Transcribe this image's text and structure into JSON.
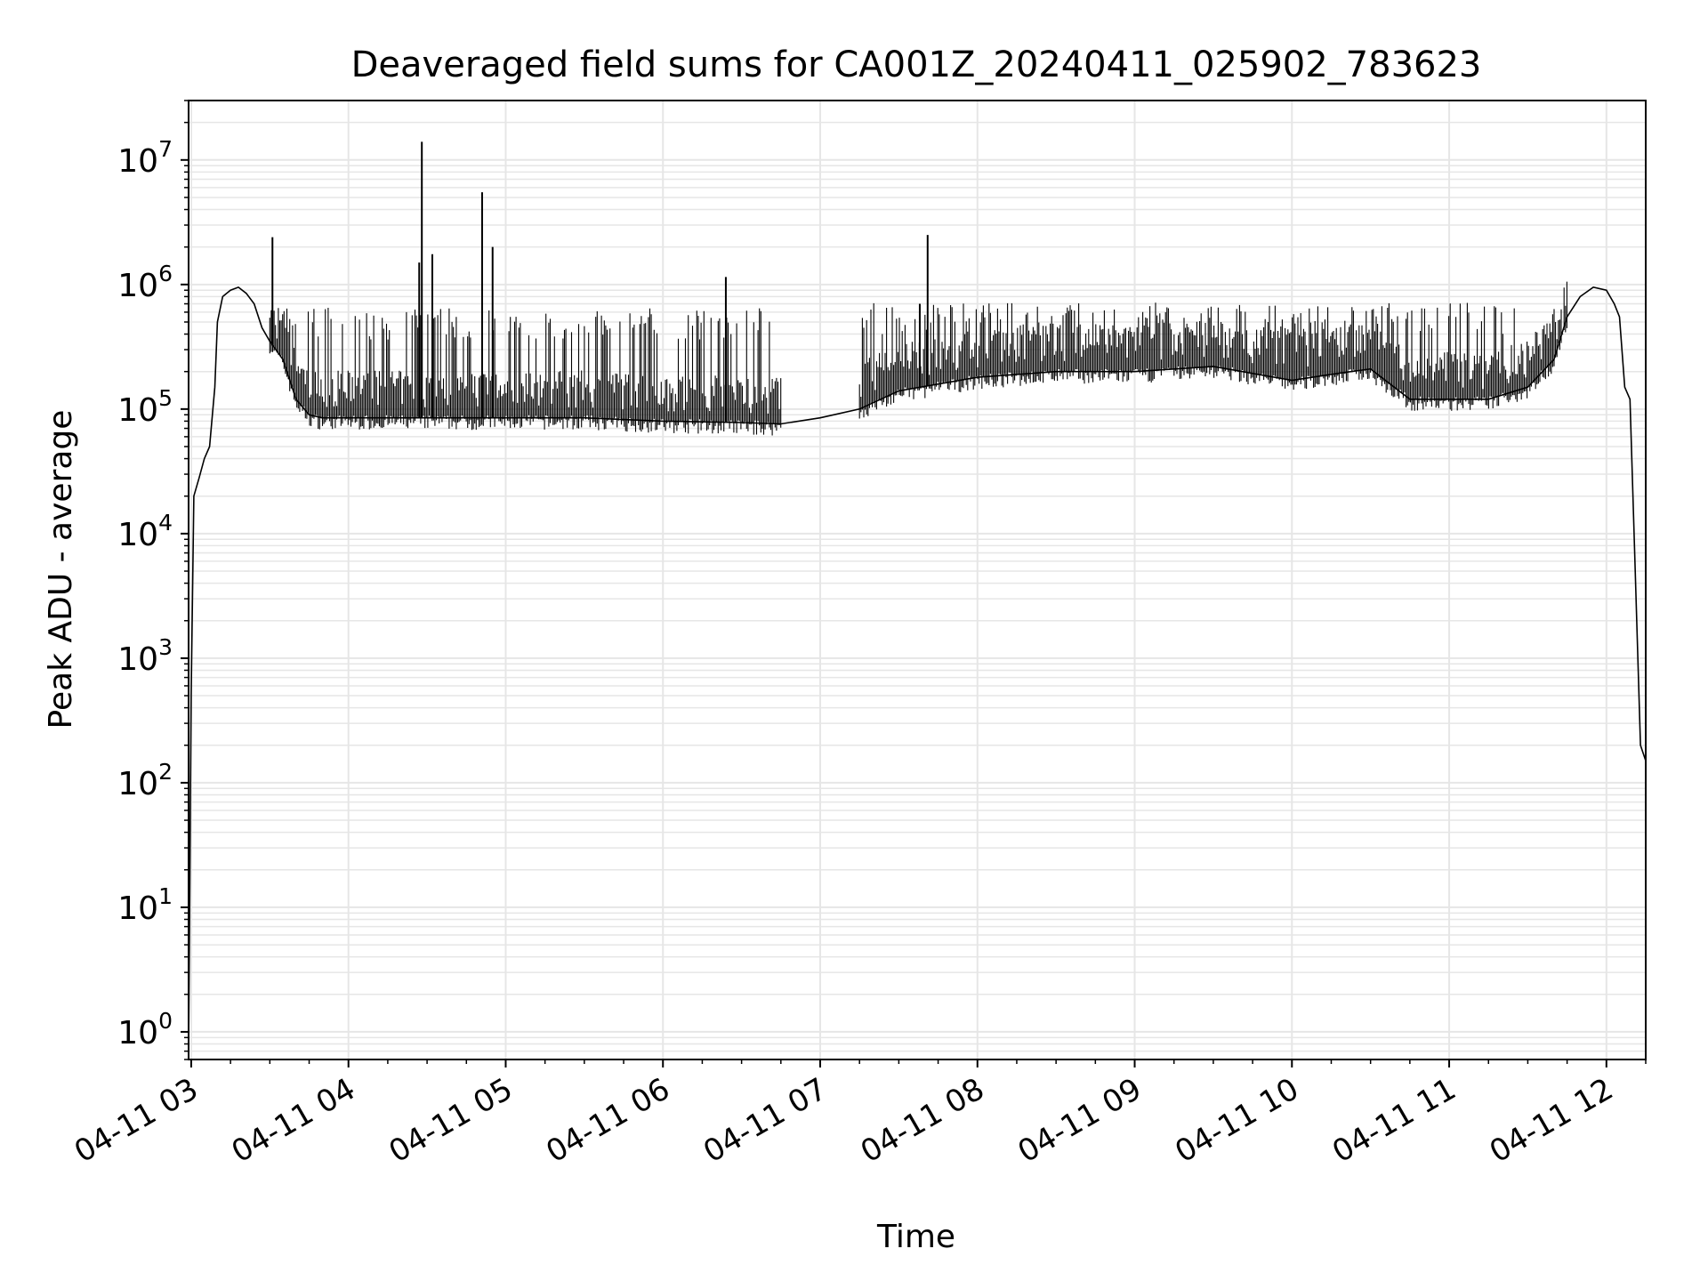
{
  "chart_data": {
    "type": "line",
    "title": "Deaveraged field sums for CA001Z_20240411_025902_783623",
    "xlabel": "Time",
    "ylabel": "Peak ADU - average",
    "yscale": "log",
    "ylim": [
      0.6,
      30000000
    ],
    "xlim": [
      "2024-04-11 02:59",
      "2024-04-11 12:15"
    ],
    "grid": true,
    "legend": "none",
    "x_ticks": [
      "04-11 03",
      "04-11 04",
      "04-11 05",
      "04-11 06",
      "04-11 07",
      "04-11 08",
      "04-11 09",
      "04-11 10",
      "04-11 11",
      "04-11 12"
    ],
    "y_ticks": [
      {
        "base": "10",
        "exp": "0",
        "value": 1
      },
      {
        "base": "10",
        "exp": "1",
        "value": 10
      },
      {
        "base": "10",
        "exp": "2",
        "value": 100
      },
      {
        "base": "10",
        "exp": "3",
        "value": 1000
      },
      {
        "base": "10",
        "exp": "4",
        "value": 10000
      },
      {
        "base": "10",
        "exp": "5",
        "value": 100000
      },
      {
        "base": "10",
        "exp": "6",
        "value": 1000000
      },
      {
        "base": "10",
        "exp": "7",
        "value": 10000000
      }
    ],
    "line_color": "#000000",
    "grid_color": "#e6e6e6",
    "series": [
      {
        "x": [
          "2024-04-11 02:59",
          "2024-04-11 03:00",
          "2024-04-11 03:01",
          "2024-04-11 03:03",
          "2024-04-11 03:05",
          "2024-04-11 03:07",
          "2024-04-11 03:09",
          "2024-04-11 03:10",
          "2024-04-11 03:12",
          "2024-04-11 03:15",
          "2024-04-11 03:18",
          "2024-04-11 03:21",
          "2024-04-11 03:24",
          "2024-04-11 03:27",
          "2024-04-11 03:30",
          "2024-04-11 03:35",
          "2024-04-11 03:40",
          "2024-04-11 03:45",
          "2024-04-11 03:50",
          "2024-04-11 04:00",
          "2024-04-11 04:30",
          "2024-04-11 05:00",
          "2024-04-11 05:30",
          "2024-04-11 06:00",
          "2024-04-11 06:30",
          "2024-04-11 06:45",
          "2024-04-11 07:00",
          "2024-04-11 07:15",
          "2024-04-11 07:30",
          "2024-04-11 08:00",
          "2024-04-11 08:30",
          "2024-04-11 09:00",
          "2024-04-11 09:30",
          "2024-04-11 10:00",
          "2024-04-11 10:15",
          "2024-04-11 10:30",
          "2024-04-11 10:45",
          "2024-04-11 11:00",
          "2024-04-11 11:15",
          "2024-04-11 11:30",
          "2024-04-11 11:40",
          "2024-04-11 11:45",
          "2024-04-11 11:50",
          "2024-04-11 11:55",
          "2024-04-11 12:00",
          "2024-04-11 12:03",
          "2024-04-11 12:05",
          "2024-04-11 12:07",
          "2024-04-11 12:09",
          "2024-04-11 12:11",
          "2024-04-11 12:13",
          "2024-04-11 12:15"
        ],
        "y": [
          0.7,
          500,
          20000,
          28000,
          40000,
          50000,
          150000,
          500000,
          800000,
          900000,
          950000,
          850000,
          700000,
          450000,
          350000,
          250000,
          120000,
          90000,
          85000,
          85000,
          85000,
          85000,
          85000,
          80000,
          78000,
          76000,
          85000,
          100000,
          140000,
          180000,
          200000,
          200000,
          220000,
          170000,
          190000,
          210000,
          120000,
          120000,
          120000,
          150000,
          250000,
          550000,
          800000,
          950000,
          900000,
          700000,
          550000,
          150000,
          120000,
          5000,
          200,
          150
        ]
      }
    ],
    "spike_bands": [
      {
        "x": [
          "2024-04-11 03:30",
          "2024-04-11 06:45"
        ],
        "top": 600000
      },
      {
        "x": [
          "2024-04-11 07:15",
          "2024-04-11 11:45"
        ],
        "top": 650000
      }
    ],
    "spikes": [
      {
        "x": "2024-04-11 03:31",
        "y": 2400000
      },
      {
        "x": "2024-04-11 04:27",
        "y": 1500000
      },
      {
        "x": "2024-04-11 04:28",
        "y": 14000000
      },
      {
        "x": "2024-04-11 04:32",
        "y": 1750000
      },
      {
        "x": "2024-04-11 04:51",
        "y": 5500000
      },
      {
        "x": "2024-04-11 04:55",
        "y": 2000000
      },
      {
        "x": "2024-04-11 06:24",
        "y": 1150000
      },
      {
        "x": "2024-04-11 07:41",
        "y": 2500000
      },
      {
        "x": "2024-04-11 07:38",
        "y": 700000
      }
    ]
  }
}
